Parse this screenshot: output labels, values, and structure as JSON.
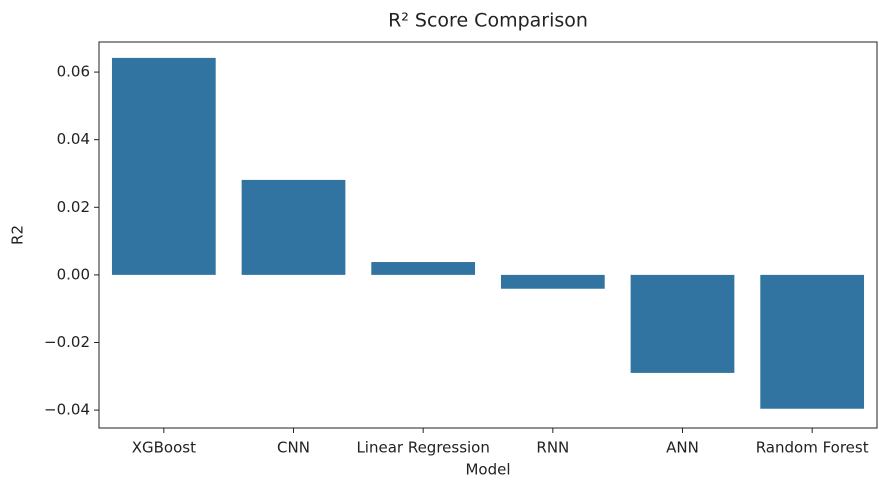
{
  "chart_data": {
    "type": "bar",
    "title": "R² Score Comparison",
    "x_label": "Model",
    "y_label": "R2",
    "categories": [
      "XGBoost",
      "CNN",
      "Linear Regression",
      "RNN",
      "ANN",
      "Random Forest"
    ],
    "values": [
      0.0642,
      0.0281,
      0.0038,
      -0.0041,
      -0.029,
      -0.0396
    ],
    "color": "#3274a1",
    "ylim": [
      -0.0453,
      0.0689
    ],
    "yticks": [
      {
        "value": -0.04,
        "label": "−0.04"
      },
      {
        "value": -0.02,
        "label": "−0.02"
      },
      {
        "value": 0,
        "label": "0.00"
      },
      0.02,
      0.04,
      0.06
    ],
    "grid": false
  }
}
